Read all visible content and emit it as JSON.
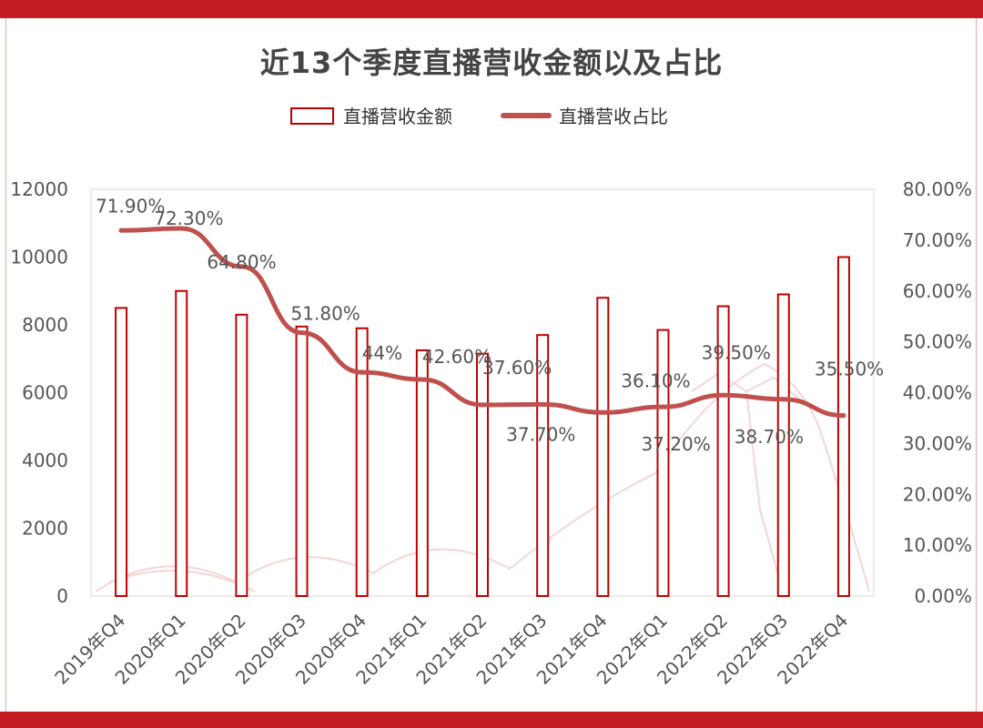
{
  "title": "近13个季度直播营收金额以及占比",
  "colors": {
    "band": "#c41e24",
    "bar_stroke": "#c00000",
    "line": "#c0504d",
    "text": "#555555"
  },
  "chart_data": {
    "type": "bar",
    "title": "近13个季度直播营收金额以及占比",
    "categories": [
      "2019年Q4",
      "2020年Q1",
      "2020年Q2",
      "2020年Q3",
      "2020年Q4",
      "2021年Q1",
      "2021年Q2",
      "2021年Q3",
      "2021年Q4",
      "2022年Q1",
      "2022年Q2",
      "2022年Q3",
      "2022年Q4"
    ],
    "series": [
      {
        "name": "直播营收金额",
        "type": "bar",
        "axis": "left",
        "values": [
          8500,
          9000,
          8300,
          7950,
          7900,
          7250,
          7150,
          7700,
          8800,
          7850,
          8550,
          8900,
          10000
        ]
      },
      {
        "name": "直播营收占比",
        "type": "line",
        "axis": "right",
        "values": [
          71.9,
          72.3,
          64.8,
          51.8,
          44,
          42.6,
          37.6,
          37.7,
          36.1,
          37.2,
          39.5,
          38.7,
          35.5
        ],
        "labels": [
          "71.90%",
          "72.30%",
          "64.80%",
          "51.80%",
          "44%",
          "42.60%",
          "37.60%",
          "37.70%",
          "36.10%",
          "37.20%",
          "39.50%",
          "38.70%",
          "35.50%"
        ]
      }
    ],
    "y_left": {
      "min": 0,
      "max": 12000,
      "ticks": [
        "0",
        "2000",
        "4000",
        "6000",
        "8000",
        "10000",
        "12000"
      ]
    },
    "y_right": {
      "min": 0,
      "max": 80,
      "ticks": [
        "0.00%",
        "10.00%",
        "20.00%",
        "30.00%",
        "40.00%",
        "50.00%",
        "60.00%",
        "70.00%",
        "80.00%"
      ]
    },
    "legend_position": "top-center",
    "grid": false
  }
}
